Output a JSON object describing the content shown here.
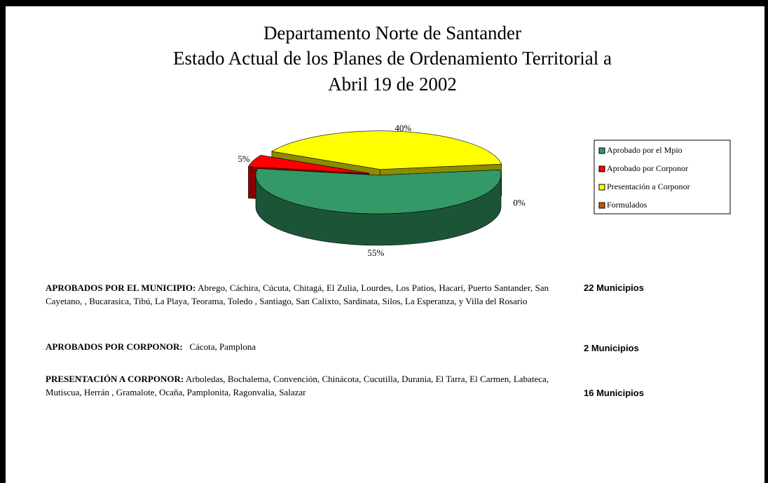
{
  "chart_data": {
    "type": "pie",
    "title_lines": [
      "Departamento Norte de Santander",
      "Estado Actual de los Planes de Ordenamiento Territorial a",
      "Abril 19 de 2002"
    ],
    "categories": [
      "Aprobado por el Mpio",
      "Aprobado por Corponor",
      "Presentación a Corponor",
      "Formulados"
    ],
    "values": [
      55,
      5,
      40,
      0
    ],
    "value_labels": [
      "55%",
      "5%",
      "40%",
      "0%"
    ],
    "colors": [
      "#339966",
      "#ff0000",
      "#ffff00",
      "#cc5500"
    ],
    "legend": "right"
  },
  "sections": [
    {
      "heading": "APROBADOS POR EL MUNICIPIO:",
      "text": "Abrego, Cáchira, Cúcuta, Chitagá, El Zulia,  Lourdes, Los Patios, Hacarí, Puerto Santander, San Cayetano,  , Bucarasica, Tibú, La Playa, Teorama, Toledo , Santiago, San Calixto, Sardinata, Silos, La Esperanza, y Villa del Rosario",
      "count": "22  Municipios"
    },
    {
      "heading": "APROBADOS POR CORPONOR:",
      "text": "Cácota, Pamplona",
      "count": "2 Municipios"
    },
    {
      "heading": "PRESENTACIÓN A CORPONOR:",
      "text": "Arboledas, Bochalema,  Convención,  Chinácota, Cucutilla, Durania, El Tarra, El Carmen, Labateca, Mutiscua, Herrán , Gramalote, Ocaña,  Pamplonita, Ragonvalia, Salazar",
      "count": "16 Municipios"
    }
  ]
}
